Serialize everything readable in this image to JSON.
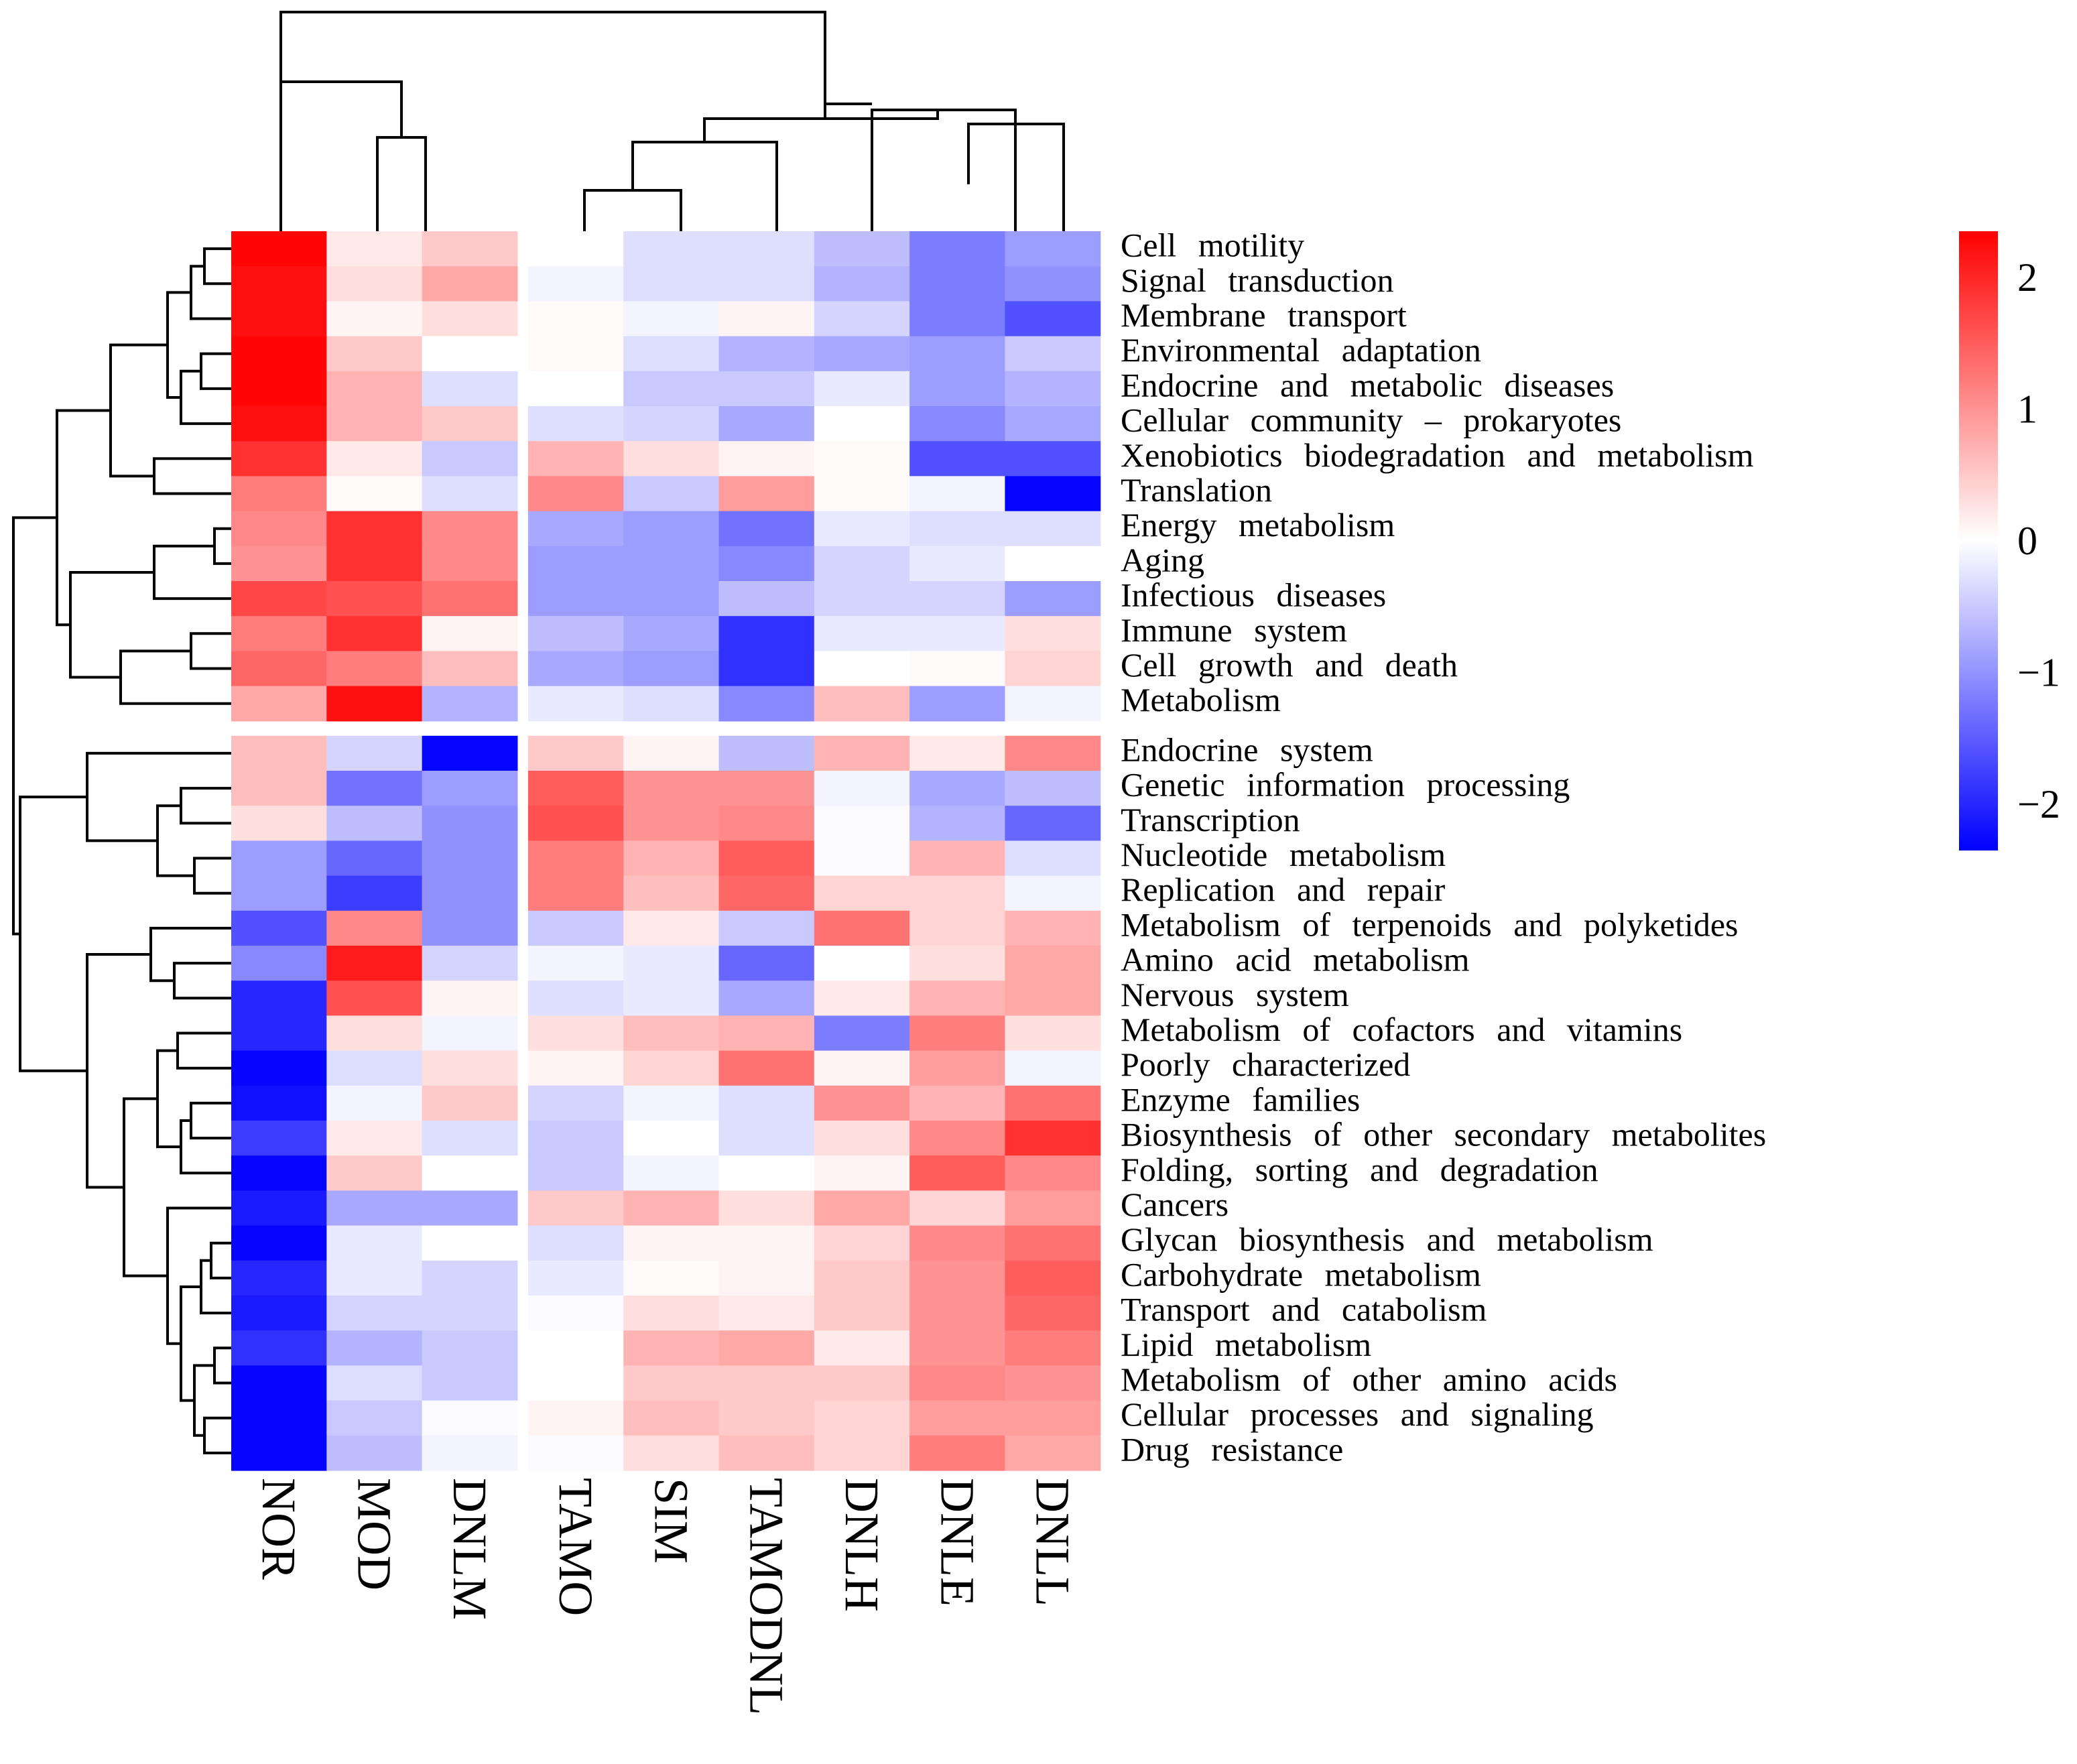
{
  "chart_data": {
    "type": "heatmap",
    "title": "",
    "columns": [
      "NOR",
      "MOD",
      "DNLM",
      "TAMO",
      "SIM",
      "TAMODNL",
      "DNLH",
      "DNLE",
      "DNLL"
    ],
    "rows": [
      "Cell   motility",
      "Signal   transduction",
      "Membrane   transport",
      "Environmental   adaptation",
      "Endocrine   and   metabolic   diseases",
      "Cellular community – prokaryotes",
      "Xenobiotics   biodegradation   and   metabolism",
      "Translation",
      "Energy   metabolism",
      "Aging",
      "Infectious   diseases",
      "Immune   system",
      "Cell growth and death",
      "Metabolism",
      "Endocrine   system",
      "Genetic   information   processing",
      "Transcription",
      "Nucleotide   metabolism",
      "Replication   and   repair",
      "Metabolism   of   terpenoids   and   polyketides",
      "Amino   acid   metabolism",
      "Nervous   system",
      "Metabolism   of   cofactors   and   vitamins",
      "Poorly   characterized",
      "Enzyme   families",
      "Biosynthesis   of   other   secondary   metabolites",
      "Folding,   sorting   and   degradation",
      "Cancers",
      "Glycan   biosynthesis   and   metabolism",
      "Carbohydrate   metabolism",
      "Transport   and   catabolism",
      "Lipid   metabolism",
      "Metabolism   of   other   amino   acids",
      "Cellular   processes   and   signaling",
      "Drug   resistance"
    ],
    "values": [
      [
        2.3,
        0.2,
        0.5,
        0.0,
        -0.3,
        -0.3,
        -0.6,
        -1.2,
        -0.9
      ],
      [
        2.2,
        0.3,
        0.8,
        -0.1,
        -0.3,
        -0.3,
        -0.7,
        -1.2,
        -1.0
      ],
      [
        2.2,
        0.1,
        0.3,
        0.05,
        -0.1,
        0.1,
        -0.4,
        -1.2,
        -1.6
      ],
      [
        2.3,
        0.5,
        0.0,
        0.05,
        -0.3,
        -0.7,
        -0.8,
        -0.9,
        -0.5
      ],
      [
        2.3,
        0.7,
        -0.3,
        0.0,
        -0.5,
        -0.5,
        -0.2,
        -0.9,
        -0.7
      ],
      [
        2.2,
        0.7,
        0.5,
        -0.3,
        -0.4,
        -0.8,
        0.0,
        -1.1,
        -0.8
      ],
      [
        1.9,
        0.2,
        -0.5,
        0.7,
        0.3,
        0.1,
        0.05,
        -1.6,
        -1.6
      ],
      [
        1.2,
        0.05,
        -0.3,
        1.1,
        -0.5,
        0.9,
        0.05,
        -0.1,
        -2.3
      ],
      [
        1.1,
        1.9,
        1.1,
        -0.8,
        -0.9,
        -1.3,
        -0.2,
        -0.3,
        -0.3
      ],
      [
        1.0,
        1.9,
        1.1,
        -0.9,
        -0.9,
        -1.1,
        -0.4,
        -0.2,
        0.0
      ],
      [
        1.7,
        1.6,
        1.3,
        -0.9,
        -0.9,
        -0.6,
        -0.4,
        -0.4,
        -0.9
      ],
      [
        1.2,
        1.9,
        0.1,
        -0.6,
        -0.8,
        -1.9,
        -0.2,
        -0.2,
        0.3
      ],
      [
        1.4,
        1.2,
        0.6,
        -0.8,
        -0.9,
        -1.9,
        0.0,
        0.05,
        0.4
      ],
      [
        0.8,
        2.2,
        -0.7,
        -0.2,
        -0.3,
        -1.1,
        0.6,
        -0.9,
        -0.1
      ],
      [
        0.6,
        -0.4,
        -2.3,
        0.5,
        0.1,
        -0.6,
        0.7,
        0.2,
        1.1
      ],
      [
        0.6,
        -1.3,
        -0.9,
        1.5,
        1.0,
        1.0,
        -0.1,
        -0.8,
        -0.6
      ],
      [
        0.3,
        -0.6,
        -1.0,
        1.6,
        1.0,
        1.1,
        -0.05,
        -0.7,
        -1.4
      ],
      [
        -0.9,
        -1.4,
        -1.0,
        1.2,
        0.7,
        1.5,
        -0.05,
        0.7,
        -0.3
      ],
      [
        -0.9,
        -1.8,
        -1.0,
        1.2,
        0.6,
        1.4,
        0.4,
        0.4,
        -0.1
      ],
      [
        -1.6,
        1.1,
        -1.0,
        -0.5,
        0.2,
        -0.5,
        1.3,
        0.4,
        0.7
      ],
      [
        -1.1,
        2.1,
        -0.4,
        -0.1,
        -0.2,
        -1.4,
        0.0,
        0.3,
        0.8
      ],
      [
        -2.0,
        1.6,
        0.1,
        -0.3,
        -0.2,
        -0.8,
        0.2,
        0.7,
        0.8
      ],
      [
        -2.0,
        0.3,
        -0.1,
        0.3,
        0.6,
        0.7,
        -1.2,
        1.2,
        0.3
      ],
      [
        -2.3,
        -0.3,
        0.3,
        0.1,
        0.4,
        1.3,
        0.1,
        0.9,
        -0.1
      ],
      [
        -2.2,
        -0.1,
        0.5,
        -0.4,
        -0.1,
        -0.3,
        1.0,
        0.7,
        1.3
      ],
      [
        -1.8,
        0.2,
        -0.3,
        -0.5,
        0.0,
        -0.3,
        0.3,
        1.1,
        1.9
      ],
      [
        -2.3,
        0.5,
        0.0,
        -0.5,
        -0.1,
        0.0,
        0.1,
        1.5,
        1.1
      ],
      [
        -2.1,
        -0.8,
        -0.8,
        0.5,
        0.7,
        0.3,
        0.8,
        0.4,
        0.9
      ],
      [
        -2.3,
        -0.2,
        0.0,
        -0.3,
        0.1,
        0.1,
        0.4,
        1.1,
        1.3
      ],
      [
        -2.0,
        -0.2,
        -0.4,
        -0.2,
        0.05,
        0.1,
        0.5,
        1.0,
        1.5
      ],
      [
        -2.1,
        -0.4,
        -0.4,
        -0.05,
        0.3,
        0.2,
        0.5,
        1.0,
        1.4
      ],
      [
        -1.9,
        -0.7,
        -0.5,
        0.0,
        0.7,
        0.8,
        0.2,
        1.0,
        1.2
      ],
      [
        -2.3,
        -0.3,
        -0.5,
        0.0,
        0.5,
        0.5,
        0.5,
        1.1,
        1.0
      ],
      [
        -2.3,
        -0.5,
        -0.05,
        0.1,
        0.6,
        0.5,
        0.4,
        0.9,
        0.9
      ],
      [
        -2.3,
        -0.6,
        -0.1,
        -0.05,
        0.3,
        0.6,
        0.4,
        1.2,
        0.8
      ]
    ],
    "row_split_after": 13,
    "col_split_after": 2,
    "colorbar": {
      "min": -2.35,
      "max": 2.35,
      "ticks": [
        2,
        1,
        0,
        -1,
        -2
      ],
      "tick_labels": [
        "2",
        "1",
        "0",
        "−1",
        "−2"
      ],
      "colors": {
        "low": "#0000ff",
        "mid": "#ffffff",
        "high": "#ff0000"
      }
    },
    "legend_position": "top-right",
    "row_dendrogram": "left",
    "column_dendrogram": "top"
  }
}
